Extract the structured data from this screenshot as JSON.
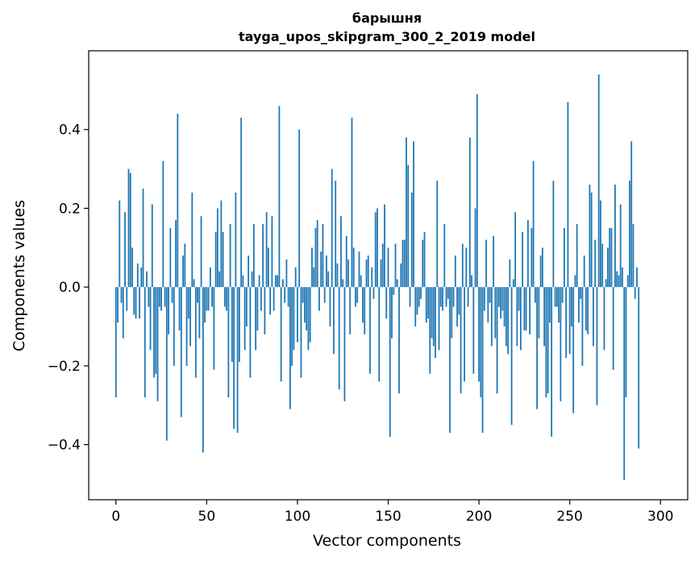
{
  "chart_data": {
    "type": "bar",
    "title_line1": "барышня",
    "title_line2": "tayga_upos_skipgram_300_2_2019 model",
    "xlabel": "Vector components",
    "ylabel": "Components values",
    "xlim": [
      -15,
      315
    ],
    "ylim": [
      -0.54,
      0.6
    ],
    "xticks": [
      {
        "value": 0,
        "label": "0"
      },
      {
        "value": 50,
        "label": "50"
      },
      {
        "value": 100,
        "label": "100"
      },
      {
        "value": 150,
        "label": "150"
      },
      {
        "value": 200,
        "label": "200"
      },
      {
        "value": 250,
        "label": "250"
      },
      {
        "value": 300,
        "label": "300"
      }
    ],
    "yticks": [
      {
        "value": -0.4,
        "label": "−0.4"
      },
      {
        "value": -0.2,
        "label": "−0.2"
      },
      {
        "value": 0.0,
        "label": "0.0"
      },
      {
        "value": 0.2,
        "label": "0.2"
      },
      {
        "value": 0.4,
        "label": "0.4"
      }
    ],
    "bar_color": "#1f77b4",
    "grid": false,
    "values": [
      -0.28,
      -0.09,
      0.22,
      -0.04,
      -0.13,
      0.19,
      -0.06,
      0.3,
      0.29,
      0.1,
      -0.07,
      -0.08,
      0.06,
      -0.08,
      0.05,
      0.25,
      -0.28,
      0.04,
      -0.05,
      -0.16,
      0.21,
      -0.23,
      -0.22,
      -0.29,
      -0.05,
      -0.06,
      0.32,
      -0.05,
      -0.39,
      -0.12,
      0.15,
      -0.04,
      -0.2,
      0.17,
      0.44,
      -0.11,
      -0.33,
      0.08,
      0.11,
      -0.2,
      -0.08,
      -0.15,
      0.24,
      0.02,
      -0.23,
      -0.04,
      -0.13,
      0.18,
      -0.42,
      -0.09,
      -0.06,
      -0.06,
      0.05,
      -0.05,
      -0.21,
      0.14,
      0.2,
      0.04,
      0.22,
      0.14,
      -0.05,
      -0.06,
      -0.28,
      0.16,
      -0.19,
      -0.36,
      0.24,
      -0.37,
      -0.19,
      0.43,
      0.03,
      -0.16,
      -0.1,
      0.08,
      -0.23,
      0.04,
      0.16,
      -0.16,
      -0.11,
      0.03,
      -0.06,
      0.16,
      -0.12,
      0.19,
      0.1,
      -0.07,
      0.18,
      -0.06,
      0.03,
      0.03,
      0.46,
      -0.24,
      0.02,
      -0.04,
      0.07,
      -0.05,
      -0.31,
      -0.2,
      -0.16,
      0.05,
      -0.14,
      0.4,
      -0.23,
      -0.04,
      -0.09,
      -0.11,
      -0.16,
      -0.14,
      0.1,
      0.05,
      0.15,
      0.17,
      -0.06,
      0.09,
      0.16,
      -0.04,
      0.08,
      0.04,
      -0.1,
      0.3,
      -0.17,
      0.27,
      0.06,
      -0.26,
      0.18,
      0.02,
      -0.29,
      0.13,
      0.07,
      -0.12,
      0.43,
      0.1,
      -0.05,
      -0.04,
      0.09,
      0.03,
      -0.09,
      -0.12,
      0.07,
      0.08,
      -0.22,
      0.05,
      -0.03,
      0.19,
      0.2,
      -0.24,
      0.07,
      0.11,
      0.21,
      -0.08,
      0.1,
      -0.38,
      -0.13,
      -0.02,
      0.11,
      0.02,
      -0.27,
      0.06,
      0.12,
      0.12,
      0.38,
      0.31,
      -0.05,
      0.24,
      0.37,
      -0.1,
      -0.07,
      -0.05,
      -0.03,
      0.12,
      0.14,
      -0.09,
      -0.08,
      -0.22,
      -0.13,
      -0.15,
      -0.18,
      0.27,
      -0.16,
      -0.05,
      -0.06,
      0.16,
      -0.05,
      -0.03,
      -0.37,
      -0.13,
      -0.05,
      0.08,
      -0.1,
      -0.07,
      -0.27,
      0.11,
      -0.24,
      0.1,
      -0.05,
      0.38,
      0.03,
      -0.22,
      0.2,
      0.49,
      -0.24,
      -0.28,
      -0.37,
      -0.06,
      0.12,
      -0.09,
      -0.04,
      -0.15,
      0.13,
      -0.13,
      -0.27,
      -0.05,
      -0.08,
      -0.06,
      -0.1,
      -0.15,
      -0.17,
      0.07,
      -0.35,
      0.02,
      0.19,
      -0.15,
      -0.06,
      -0.16,
      0.14,
      -0.11,
      -0.11,
      0.17,
      -0.12,
      0.15,
      0.32,
      -0.04,
      -0.31,
      -0.13,
      0.08,
      0.1,
      -0.15,
      -0.28,
      -0.27,
      -0.09,
      -0.38,
      0.27,
      -0.05,
      -0.05,
      -0.09,
      -0.29,
      -0.04,
      0.15,
      -0.18,
      0.47,
      -0.17,
      -0.1,
      -0.32,
      0.03,
      0.16,
      -0.09,
      -0.03,
      -0.2,
      0.08,
      -0.11,
      -0.12,
      0.26,
      0.24,
      -0.15,
      0.12,
      -0.3,
      0.54,
      0.22,
      0.11,
      -0.16,
      0.02,
      0.1,
      0.15,
      0.15,
      -0.21,
      0.26,
      0.04,
      0.03,
      0.21,
      0.05,
      -0.49,
      -0.28,
      0.03,
      0.27,
      0.37,
      0.16,
      -0.03,
      0.05,
      -0.41
    ]
  }
}
